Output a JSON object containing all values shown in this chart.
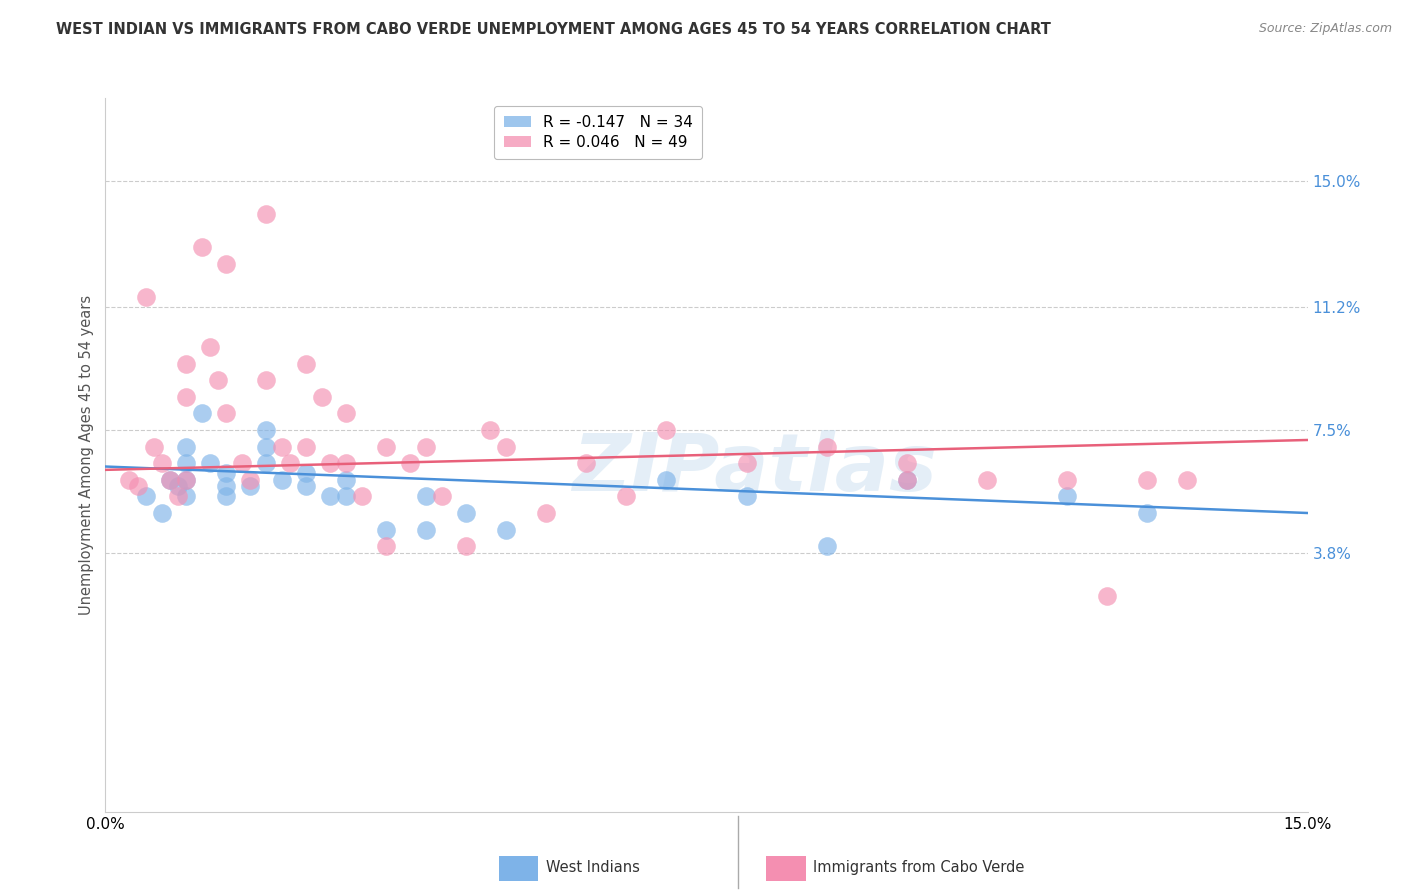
{
  "title": "WEST INDIAN VS IMMIGRANTS FROM CABO VERDE UNEMPLOYMENT AMONG AGES 45 TO 54 YEARS CORRELATION CHART",
  "source": "Source: ZipAtlas.com",
  "xlabel_bottom_left": "0.0%",
  "xlabel_bottom_right": "15.0%",
  "ylabel": "Unemployment Among Ages 45 to 54 years",
  "right_ytick_labels": [
    "15.0%",
    "11.2%",
    "7.5%",
    "3.8%"
  ],
  "right_ytick_values": [
    0.15,
    0.112,
    0.075,
    0.038
  ],
  "xmin": 0.0,
  "xmax": 0.15,
  "ymin": -0.04,
  "ymax": 0.175,
  "legend1_label": "R = -0.147   N = 34",
  "legend2_label": "R = 0.046   N = 49",
  "legend1_color": "#7EB3E8",
  "legend2_color": "#F48FB1",
  "west_indians_color": "#7EB3E8",
  "cabo_verde_color": "#F48FB1",
  "trendline1_color": "#4A90D9",
  "trendline2_color": "#E8607A",
  "watermark": "ZIPatlas",
  "west_indians_x": [
    0.005,
    0.007,
    0.008,
    0.009,
    0.01,
    0.01,
    0.01,
    0.01,
    0.012,
    0.013,
    0.015,
    0.015,
    0.015,
    0.018,
    0.02,
    0.02,
    0.02,
    0.022,
    0.025,
    0.025,
    0.028,
    0.03,
    0.03,
    0.035,
    0.04,
    0.04,
    0.045,
    0.05,
    0.07,
    0.08,
    0.09,
    0.1,
    0.12,
    0.13
  ],
  "west_indians_y": [
    0.055,
    0.05,
    0.06,
    0.058,
    0.065,
    0.07,
    0.06,
    0.055,
    0.08,
    0.065,
    0.062,
    0.058,
    0.055,
    0.058,
    0.075,
    0.07,
    0.065,
    0.06,
    0.062,
    0.058,
    0.055,
    0.06,
    0.055,
    0.045,
    0.055,
    0.045,
    0.05,
    0.045,
    0.06,
    0.055,
    0.04,
    0.06,
    0.055,
    0.05
  ],
  "cabo_verde_x": [
    0.003,
    0.004,
    0.005,
    0.006,
    0.007,
    0.008,
    0.009,
    0.01,
    0.01,
    0.01,
    0.012,
    0.013,
    0.014,
    0.015,
    0.015,
    0.017,
    0.018,
    0.02,
    0.02,
    0.022,
    0.023,
    0.025,
    0.025,
    0.027,
    0.028,
    0.03,
    0.03,
    0.032,
    0.035,
    0.035,
    0.038,
    0.04,
    0.042,
    0.045,
    0.048,
    0.05,
    0.055,
    0.06,
    0.065,
    0.07,
    0.08,
    0.09,
    0.1,
    0.1,
    0.11,
    0.12,
    0.125,
    0.13,
    0.135
  ],
  "cabo_verde_y": [
    0.06,
    0.058,
    0.115,
    0.07,
    0.065,
    0.06,
    0.055,
    0.095,
    0.085,
    0.06,
    0.13,
    0.1,
    0.09,
    0.125,
    0.08,
    0.065,
    0.06,
    0.14,
    0.09,
    0.07,
    0.065,
    0.095,
    0.07,
    0.085,
    0.065,
    0.08,
    0.065,
    0.055,
    0.07,
    0.04,
    0.065,
    0.07,
    0.055,
    0.04,
    0.075,
    0.07,
    0.05,
    0.065,
    0.055,
    0.075,
    0.065,
    0.07,
    0.065,
    0.06,
    0.06,
    0.06,
    0.025,
    0.06,
    0.06
  ],
  "grid_color": "#CCCCCC",
  "background_color": "#FFFFFF",
  "trendline1_x0": 0.0,
  "trendline1_y0": 0.064,
  "trendline1_x1": 0.15,
  "trendline1_y1": 0.05,
  "trendline2_x0": 0.0,
  "trendline2_y0": 0.063,
  "trendline2_x1": 0.15,
  "trendline2_y1": 0.072
}
